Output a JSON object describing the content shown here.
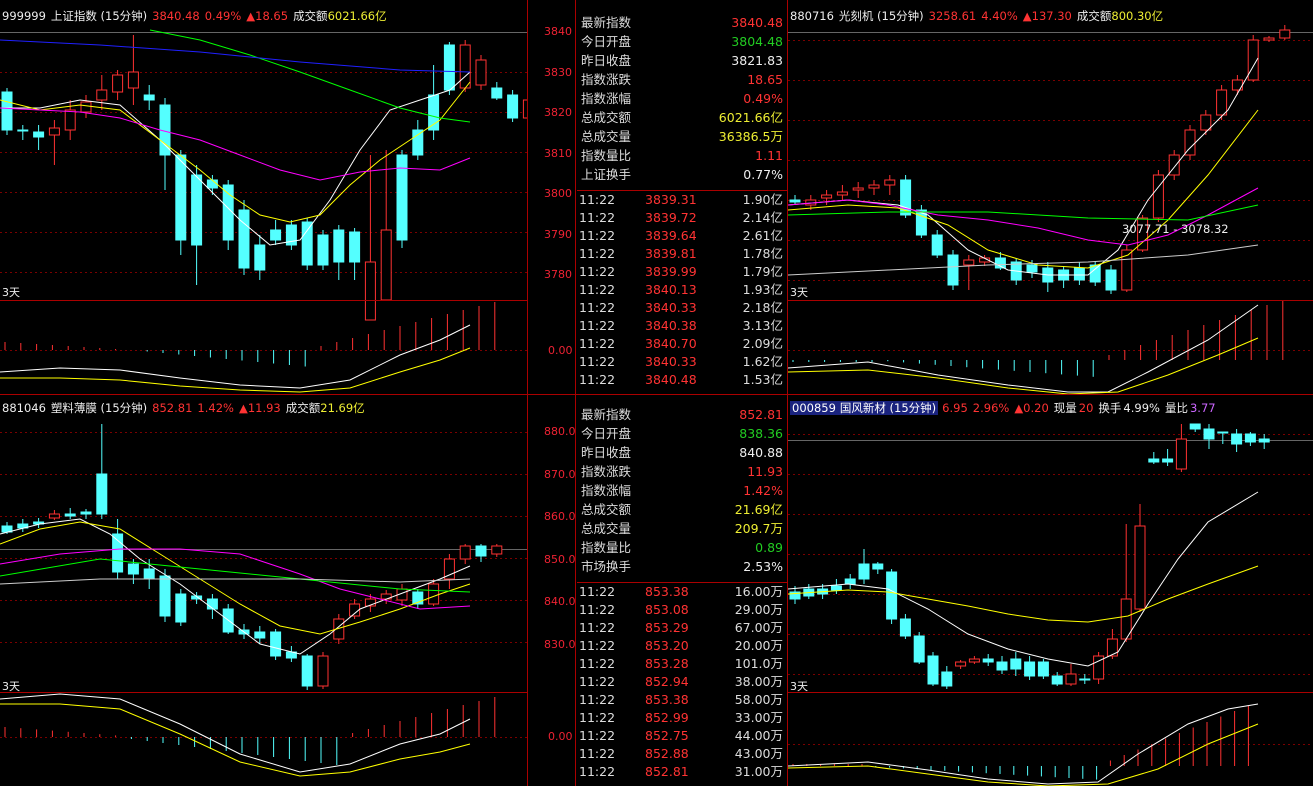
{
  "panels": {
    "sh": {
      "code": "999999",
      "name": "上证指数 (15分钟)",
      "price": "3840.48",
      "pct": "0.49%",
      "chg": "▲18.65",
      "amount_label": "成交额",
      "amount": "6021.66亿",
      "period": "3天",
      "yticks": [
        "3840",
        "3830",
        "3820",
        "3810",
        "3800",
        "3790",
        "3780"
      ],
      "sub_zero": "0.00",
      "quote": [
        {
          "k": "最新指数",
          "v": "3840.48",
          "c": "red"
        },
        {
          "k": "今日开盘",
          "v": "3804.48",
          "c": "green"
        },
        {
          "k": "昨日收盘",
          "v": "3821.83",
          "c": "white"
        },
        {
          "k": "指数涨跌",
          "v": "18.65",
          "c": "red"
        },
        {
          "k": "指数涨幅",
          "v": "0.49%",
          "c": "red"
        },
        {
          "k": "总成交额",
          "v": "6021.66亿",
          "c": "yellow"
        },
        {
          "k": "总成交量",
          "v": "36386.5万",
          "c": "yellow"
        },
        {
          "k": "指数量比",
          "v": "1.11",
          "c": "red"
        },
        {
          "k": "上证换手",
          "v": "0.77%",
          "c": "white"
        }
      ],
      "ticks": [
        [
          "11:22",
          "3839.31",
          "1.90亿"
        ],
        [
          "11:22",
          "3839.72",
          "2.14亿"
        ],
        [
          "11:22",
          "3839.64",
          "2.61亿"
        ],
        [
          "11:22",
          "3839.81",
          "1.78亿"
        ],
        [
          "11:22",
          "3839.99",
          "1.79亿"
        ],
        [
          "11:22",
          "3840.13",
          "1.93亿"
        ],
        [
          "11:22",
          "3840.33",
          "2.18亿"
        ],
        [
          "11:22",
          "3840.38",
          "3.13亿"
        ],
        [
          "11:22",
          "3840.70",
          "2.09亿"
        ],
        [
          "11:22",
          "3840.33",
          "1.62亿"
        ],
        [
          "11:22",
          "3840.48",
          "1.53亿"
        ]
      ]
    },
    "gk": {
      "code": "880716",
      "name": "光刻机 (15分钟)",
      "price": "3258.61",
      "pct": "4.40%",
      "chg": "▲137.30",
      "amount_label": "成交额",
      "amount": "800.30亿",
      "period": "3天",
      "range_label": "3077.71 - 3078.32"
    },
    "sl": {
      "code": "881046",
      "name": "塑料薄膜 (15分钟)",
      "price": "852.81",
      "pct": "1.42%",
      "chg": "▲11.93",
      "amount_label": "成交额",
      "amount": "21.69亿",
      "period": "3天",
      "yticks": [
        "880.0",
        "870.0",
        "860.0",
        "850.0",
        "840.0",
        "830.0"
      ],
      "sub_zero": "0.00",
      "quote": [
        {
          "k": "最新指数",
          "v": "852.81",
          "c": "red"
        },
        {
          "k": "今日开盘",
          "v": "838.36",
          "c": "green"
        },
        {
          "k": "昨日收盘",
          "v": "840.88",
          "c": "white"
        },
        {
          "k": "指数涨跌",
          "v": "11.93",
          "c": "red"
        },
        {
          "k": "指数涨幅",
          "v": "1.42%",
          "c": "red"
        },
        {
          "k": "总成交额",
          "v": "21.69亿",
          "c": "yellow"
        },
        {
          "k": "总成交量",
          "v": "209.7万",
          "c": "yellow"
        },
        {
          "k": "指数量比",
          "v": "0.89",
          "c": "green"
        },
        {
          "k": "市场换手",
          "v": "2.53%",
          "c": "white"
        }
      ],
      "ticks": [
        [
          "11:22",
          "853.38",
          "16.00万"
        ],
        [
          "11:22",
          "853.08",
          "29.00万"
        ],
        [
          "11:22",
          "853.29",
          "67.00万"
        ],
        [
          "11:22",
          "853.20",
          "20.00万"
        ],
        [
          "11:22",
          "853.28",
          "101.0万"
        ],
        [
          "11:22",
          "852.94",
          "38.00万"
        ],
        [
          "11:22",
          "853.38",
          "58.00万"
        ],
        [
          "11:22",
          "852.99",
          "33.00万"
        ],
        [
          "11:22",
          "852.75",
          "44.00万"
        ],
        [
          "11:22",
          "852.88",
          "43.00万"
        ],
        [
          "11:22",
          "852.81",
          "31.00万"
        ]
      ]
    },
    "gf": {
      "code": "000859",
      "name": "国风新材 (15分钟)",
      "price": "6.95",
      "pct": "2.96%",
      "chg": "▲0.20",
      "vol_label": "现量",
      "vol": "20",
      "turn_label": "换手",
      "turn": "4.99%",
      "ratio_label": "量比",
      "ratio": "3.77",
      "period": "3天"
    }
  },
  "colors": {
    "up": "#ff3232",
    "down": "#54ffff",
    "ma5": "#ffffff",
    "ma10": "#ffff00",
    "ma20": "#ff00ff",
    "ma60": "#00ff00",
    "ma120": "#2020ff",
    "grid": "#7a0000",
    "border": "#aa0000"
  }
}
